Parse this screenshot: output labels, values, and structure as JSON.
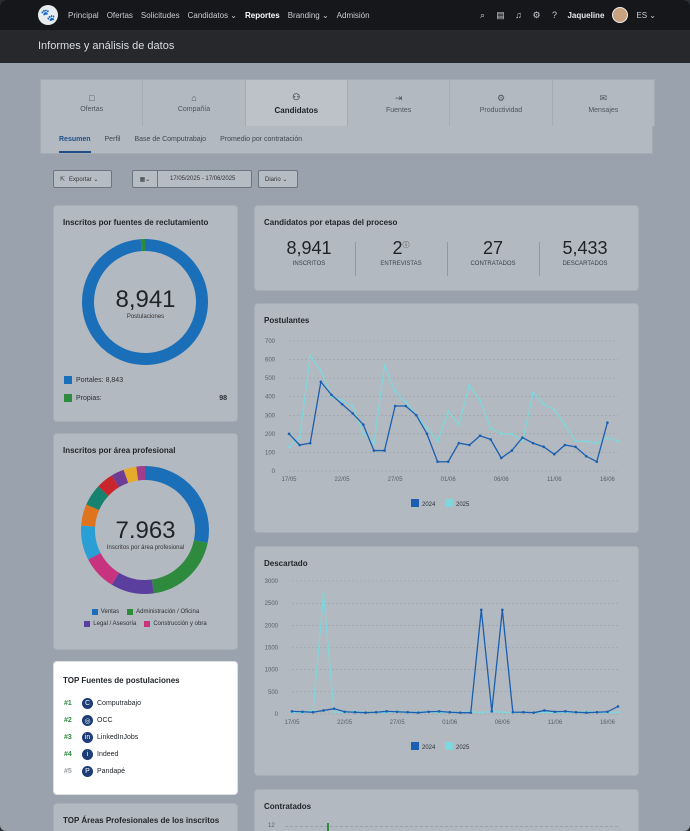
{
  "nav": {
    "items": [
      "Principal",
      "Ofertas",
      "Solicitudes",
      "Candidatos ⌄",
      "Reportes",
      "Branding ⌄",
      "Admisión"
    ],
    "active_index": 4,
    "user": "Jaqueline",
    "lang": "ES ⌄"
  },
  "page_title": "Informes y análisis de datos",
  "main_tabs": [
    {
      "label": "Ofertas",
      "icon": "□"
    },
    {
      "label": "Compañía",
      "icon": "⌂"
    },
    {
      "label": "Candidatos",
      "icon": "⚇"
    },
    {
      "label": "Fuentes",
      "icon": "⇥"
    },
    {
      "label": "Productividad",
      "icon": "⚙"
    },
    {
      "label": "Mensajes",
      "icon": "✉"
    }
  ],
  "sub_tabs": [
    "Resumen",
    "Perfil",
    "Base de Computrabajo",
    "Promedio por contratación"
  ],
  "filters": {
    "export": "Exportar ⌄",
    "date_range": "17/05/2025 - 17/06/2025",
    "period": "Diario ⌄"
  },
  "sources_card": {
    "title": "Inscritos por fuentes de reclutamiento",
    "total": "8,941",
    "total_label": "Postulaciones",
    "legend": [
      {
        "label": "Portales: 8,843",
        "value": "",
        "color": "#1b6fb8"
      },
      {
        "label": "Propias:",
        "value": "98",
        "color": "#2e8b3e"
      }
    ]
  },
  "area_card": {
    "title": "Inscritos por área profesional",
    "total": "7.963",
    "total_label": "Inscritos por área profesional",
    "legend": [
      {
        "label": "Ventas",
        "color": "#1b6fb8"
      },
      {
        "label": "Administración / Oficina",
        "color": "#2e8b3e"
      },
      {
        "label": "Legal / Asesoría",
        "color": "#5a3f9e"
      },
      {
        "label": "Construcción y obra",
        "color": "#c7337f"
      }
    ]
  },
  "top_sources": {
    "title": "TOP Fuentes de postulaciones",
    "items": [
      {
        "rank": "#1",
        "name": "Computrabajo",
        "icon": "C"
      },
      {
        "rank": "#2",
        "name": "OCC",
        "icon": "◎"
      },
      {
        "rank": "#3",
        "name": "LinkedInJobs",
        "icon": "in"
      },
      {
        "rank": "#4",
        "name": "Indeed",
        "icon": "i"
      },
      {
        "rank": "#5",
        "name": "Pandapé",
        "icon": "P"
      }
    ]
  },
  "top_areas_title": "TOP Áreas Profesionales de los inscritos",
  "stages": {
    "title": "Candidatos por etapas del proceso",
    "items": [
      {
        "value": "8,941",
        "label": "INSCRITOS"
      },
      {
        "value": "2",
        "label": "ENTREVISTAS"
      },
      {
        "value": "27",
        "label": "CONTRATADOS"
      },
      {
        "value": "5,433",
        "label": "DESCARTADOS"
      }
    ]
  },
  "chart_data": [
    {
      "type": "pie",
      "title": "Inscritos por fuentes de reclutamiento",
      "labels": [
        "Portales",
        "Propias"
      ],
      "values": [
        8843,
        98
      ],
      "colors": [
        "#1b6fb8",
        "#2e8b3e"
      ]
    },
    {
      "type": "pie",
      "title": "Inscritos por área profesional",
      "labels": [
        "Ventas",
        "Administración / Oficina",
        "Legal / Asesoría",
        "Construcción y obra",
        "",
        "",
        "",
        "",
        "",
        "",
        ""
      ],
      "values": [
        26,
        18,
        10,
        8,
        8,
        5,
        5,
        4,
        3,
        3,
        2
      ],
      "colors": [
        "#1b6fb8",
        "#2e8b3e",
        "#5a3f9e",
        "#c7337f",
        "#2a9fd6",
        "#e0731d",
        "#16826f",
        "#c8262c",
        "#6f3c95",
        "#e5a92b",
        "#a13d8a"
      ]
    },
    {
      "type": "line",
      "title": "Postulantes",
      "xticks": [
        "17/05",
        "22/05",
        "27/05",
        "01/06",
        "06/06",
        "11/06",
        "16/06"
      ],
      "x": [
        "17/05",
        "18/05",
        "19/05",
        "20/05",
        "21/05",
        "22/05",
        "23/05",
        "24/05",
        "25/05",
        "26/05",
        "27/05",
        "28/05",
        "29/05",
        "30/05",
        "31/05",
        "01/06",
        "02/06",
        "03/06",
        "04/06",
        "05/06",
        "06/06",
        "07/06",
        "08/06",
        "09/06",
        "10/06",
        "11/06",
        "12/06",
        "13/06",
        "14/06",
        "15/06",
        "16/06",
        "17/06"
      ],
      "ylim": [
        0,
        700
      ],
      "yticks": [
        0,
        100,
        200,
        300,
        400,
        500,
        600,
        700
      ],
      "series": [
        {
          "name": "2024",
          "color": "#1b5fb0",
          "values": [
            200,
            140,
            150,
            480,
            410,
            360,
            310,
            250,
            110,
            110,
            350,
            350,
            300,
            200,
            50,
            50,
            150,
            140,
            190,
            170,
            70,
            110,
            180,
            150,
            130,
            90,
            140,
            130,
            80,
            50,
            260,
            null
          ]
        },
        {
          "name": "2025",
          "color": "#7fd6dc",
          "values": [
            130,
            180,
            620,
            540,
            400,
            380,
            350,
            200,
            150,
            570,
            430,
            370,
            300,
            230,
            160,
            320,
            250,
            460,
            380,
            230,
            200,
            200,
            160,
            420,
            360,
            330,
            250,
            160,
            160,
            150,
            180,
            160
          ]
        }
      ]
    },
    {
      "type": "line",
      "title": "Descartado",
      "xticks": [
        "17/05",
        "22/05",
        "27/05",
        "01/06",
        "06/06",
        "11/06",
        "16/06"
      ],
      "x": [
        "17/05",
        "18/05",
        "19/05",
        "20/05",
        "21/05",
        "22/05",
        "23/05",
        "24/05",
        "25/05",
        "26/05",
        "27/05",
        "28/05",
        "29/05",
        "30/05",
        "31/05",
        "01/06",
        "02/06",
        "03/06",
        "04/06",
        "05/06",
        "06/06",
        "07/06",
        "08/06",
        "09/06",
        "10/06",
        "11/06",
        "12/06",
        "13/06",
        "14/06",
        "15/06",
        "16/06",
        "17/06"
      ],
      "ylim": [
        0,
        3000
      ],
      "yticks": [
        0,
        500,
        1000,
        1500,
        2000,
        2500,
        3000
      ],
      "series": [
        {
          "name": "2024",
          "color": "#1b5fb0",
          "values": [
            60,
            50,
            40,
            80,
            120,
            50,
            40,
            30,
            40,
            60,
            50,
            40,
            30,
            50,
            60,
            40,
            30,
            30,
            2350,
            60,
            2350,
            40,
            40,
            30,
            80,
            50,
            60,
            40,
            30,
            40,
            50,
            170
          ]
        },
        {
          "name": "2025",
          "color": "#7fd6dc",
          "values": [
            40,
            30,
            80,
            2700,
            40,
            40,
            60,
            30,
            40,
            30,
            60,
            30,
            40,
            50,
            30,
            40,
            30,
            50,
            30,
            60,
            40,
            30,
            40,
            30,
            40,
            30,
            40,
            30,
            50,
            40,
            30,
            40
          ]
        }
      ]
    }
  ],
  "contratados": {
    "title": "Contratados",
    "ytick_top": "12"
  },
  "legend_labels": {
    "y2024": "2024",
    "y2025": "2025"
  }
}
